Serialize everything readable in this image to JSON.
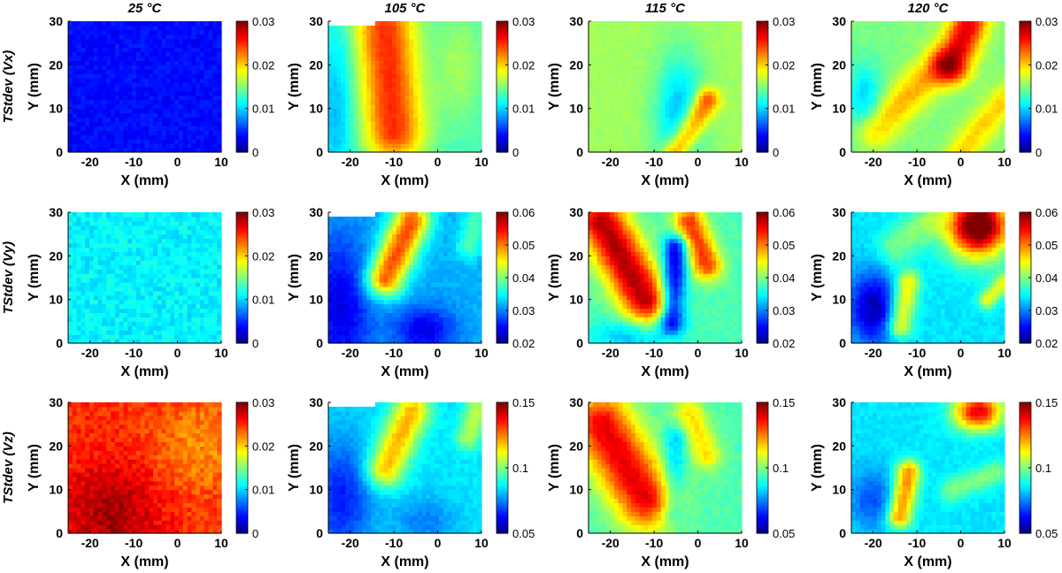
{
  "column_titles": [
    "25 °C",
    "105 °C",
    "115 °C",
    "120 °C"
  ],
  "row_titles": [
    "TStdev (Vx)",
    "TStdev (Vy)",
    "TStdev (Vz)"
  ],
  "xlabel": "X (mm)",
  "ylabel": "Y (mm)",
  "x_ticks": [
    "-20",
    "-10",
    "0",
    "10"
  ],
  "y_ticks": [
    "0",
    "10",
    "20",
    "30"
  ],
  "colormap": "jet",
  "chart_data": {
    "type": "heatmap",
    "xlim": [
      -25,
      10
    ],
    "ylim": [
      0,
      30
    ],
    "grid": false,
    "panels": [
      {
        "row": 0,
        "col": 0,
        "clim": [
          0,
          0.03
        ],
        "cb_ticks": [
          "0",
          "0.01",
          "0.02",
          "0.03"
        ],
        "base": 0.004,
        "pattern": "uniform",
        "noise": 0.0008
      },
      {
        "row": 0,
        "col": 1,
        "clim": [
          0,
          0.03
        ],
        "cb_ticks": [
          "0",
          "0.01",
          "0.02",
          "0.03"
        ],
        "base": 0.013,
        "pattern": "vx105",
        "noise": 0.0004,
        "masked_top_left": true
      },
      {
        "row": 0,
        "col": 2,
        "clim": [
          0,
          0.03
        ],
        "cb_ticks": [
          "0",
          "0.01",
          "0.02",
          "0.03"
        ],
        "base": 0.016,
        "pattern": "vx115",
        "noise": 0.0004
      },
      {
        "row": 0,
        "col": 3,
        "clim": [
          0,
          0.03
        ],
        "cb_ticks": [
          "0",
          "0.01",
          "0.02",
          "0.03"
        ],
        "base": 0.015,
        "pattern": "vx120",
        "noise": 0.0005
      },
      {
        "row": 1,
        "col": 0,
        "clim": [
          0,
          0.03
        ],
        "cb_ticks": [
          "0",
          "0.01",
          "0.02",
          "0.03"
        ],
        "base": 0.011,
        "pattern": "uniform",
        "noise": 0.0012
      },
      {
        "row": 1,
        "col": 1,
        "clim": [
          0.02,
          0.06
        ],
        "cb_ticks": [
          "0.02",
          "0.03",
          "0.04",
          "0.05",
          "0.06"
        ],
        "base": 0.032,
        "pattern": "vy105",
        "noise": 0.0008,
        "masked_top_left": true
      },
      {
        "row": 1,
        "col": 2,
        "clim": [
          0.02,
          0.06
        ],
        "cb_ticks": [
          "0.02",
          "0.03",
          "0.04",
          "0.05",
          "0.06"
        ],
        "base": 0.038,
        "pattern": "vy115",
        "noise": 0.0008
      },
      {
        "row": 1,
        "col": 3,
        "clim": [
          0.02,
          0.06
        ],
        "cb_ticks": [
          "0.02",
          "0.03",
          "0.04",
          "0.05",
          "0.06"
        ],
        "base": 0.034,
        "pattern": "vy120",
        "noise": 0.0008
      },
      {
        "row": 2,
        "col": 0,
        "clim": [
          0,
          0.03
        ],
        "cb_ticks": [
          "0",
          "0.01",
          "0.02",
          "0.03"
        ],
        "base": 0.025,
        "pattern": "vz25",
        "noise": 0.0014
      },
      {
        "row": 2,
        "col": 1,
        "clim": [
          0.05,
          0.15
        ],
        "cb_ticks": [
          "0.05",
          "0.1",
          "0.15"
        ],
        "base": 0.085,
        "pattern": "vz105",
        "noise": 0.002,
        "masked_top_left": true
      },
      {
        "row": 2,
        "col": 2,
        "clim": [
          0.05,
          0.15
        ],
        "cb_ticks": [
          "0.05",
          "0.1",
          "0.15"
        ],
        "base": 0.095,
        "pattern": "vz115",
        "noise": 0.002
      },
      {
        "row": 2,
        "col": 3,
        "clim": [
          0.05,
          0.15
        ],
        "cb_ticks": [
          "0.05",
          "0.1",
          "0.15"
        ],
        "base": 0.085,
        "pattern": "vz120",
        "noise": 0.002
      }
    ]
  }
}
